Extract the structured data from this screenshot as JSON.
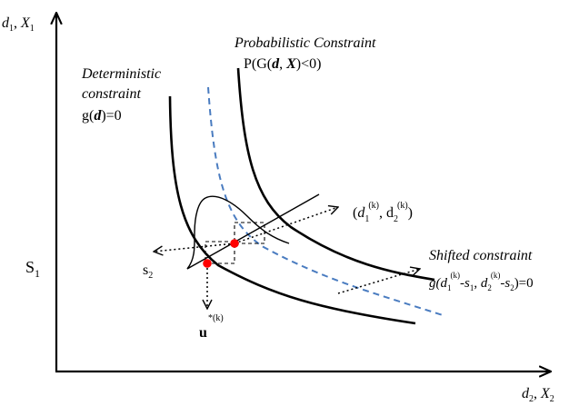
{
  "axes": {
    "y_axis_label": {
      "main": "d",
      "sub1": "1",
      "sep": ", ",
      "main2": "X",
      "sub2": "1"
    },
    "x_axis_label": {
      "main": "d",
      "sub1": "2",
      "sep": ", ",
      "main2": "X",
      "sub2": "2"
    },
    "s1_label": {
      "main": "S",
      "sub": "1"
    }
  },
  "labels": {
    "deterministic": {
      "line1": "Deterministic",
      "line2": "constraint",
      "eq_prefix": "g(",
      "eq_var": "d",
      "eq_suffix": ")=0"
    },
    "probabilistic": {
      "line1": "Probabilistic Constraint",
      "eq_a": "P(G(",
      "eq_d": "d",
      "eq_sep": ", ",
      "eq_x": "X",
      "eq_b": ")<0)"
    },
    "design_point": {
      "open": "(",
      "d": "d",
      "sub1": "1",
      "sup1": "(k)",
      "comma": ", ",
      "d2": "d",
      "sub2": "2",
      "sup2": "(k)",
      "close": ")"
    },
    "shifted": {
      "title": "Shifted constraint",
      "g": "g(",
      "d1": "d",
      "sub1": "1",
      "sup1": "(k)",
      "mid1": "-",
      "s1": "s",
      "s1sub": "1",
      "comma": ", ",
      "d2": "d",
      "sub2": "2",
      "sup2": "(k)",
      "mid2": "-",
      "s2": "s",
      "s2sub": "2",
      "end": ")=0"
    },
    "s2_label": {
      "main": "s",
      "sub": "2"
    },
    "mpp_label": {
      "sup": "*(k)",
      "main": "u"
    }
  },
  "colors": {
    "ink": "#000000",
    "shifted_curve": "#4a7cc0",
    "points": "#ff0000"
  }
}
